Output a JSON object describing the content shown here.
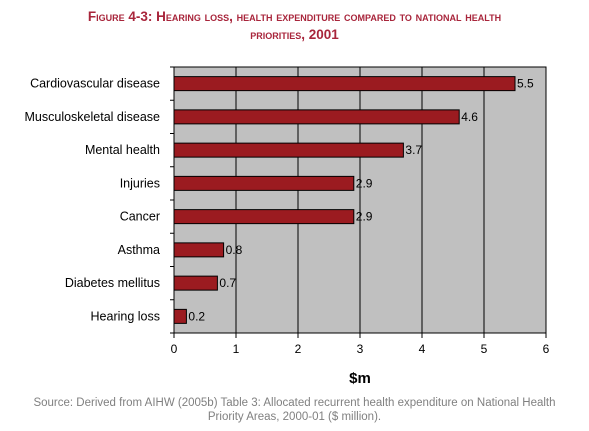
{
  "figure": {
    "title_line1": "Figure 4-3: Hearing loss, health expenditure compared to national health",
    "title_line2": "priorities, 2001",
    "source_line1": "Source: Derived from AIHW (2005b) Table 3: Allocated recurrent health expenditure on National Health",
    "source_line2": "Priority Areas, 2000-01 ($ million)."
  },
  "colors": {
    "bar": "#9b1b20",
    "plot_background": "#c0c0c0",
    "title": "#a8253b",
    "source": "#808080"
  },
  "chart_data": {
    "type": "bar",
    "orientation": "horizontal",
    "categories": [
      "Cardiovascular disease",
      "Musculoskeletal disease",
      "Mental health",
      "Injuries",
      "Cancer",
      "Asthma",
      "Diabetes mellitus",
      "Hearing loss"
    ],
    "values": [
      5.5,
      4.6,
      3.7,
      2.9,
      2.9,
      0.8,
      0.7,
      0.2
    ],
    "value_labels": [
      "5.5",
      "4.6",
      "3.7",
      "2.9",
      "2.9",
      "0.8",
      "0.7",
      "0.2"
    ],
    "xlabel": "$m",
    "xlim": [
      0,
      6
    ],
    "xticks": [
      "0",
      "1",
      "2",
      "3",
      "4",
      "5",
      "6"
    ],
    "grid": "vertical",
    "legend": "none"
  }
}
